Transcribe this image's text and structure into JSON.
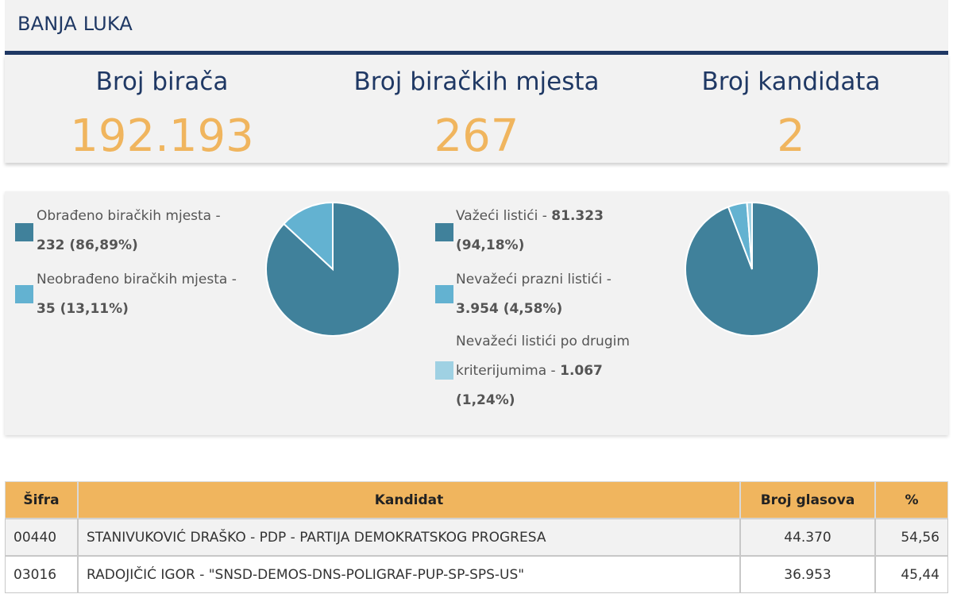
{
  "header": {
    "title": "BANJA LUKA"
  },
  "stats": [
    {
      "label": "Broj birača",
      "value": "192.193"
    },
    {
      "label": "Broj biračkih mjesta",
      "value": "267"
    },
    {
      "label": "Broj kandidata",
      "value": "2"
    }
  ],
  "colors": {
    "dark": "#40819b",
    "mid": "#63b2d1",
    "light": "#9fd1e3",
    "accent": "#f0b55e",
    "navy": "#1f3864"
  },
  "processing": {
    "legend": [
      {
        "label": "Obrađeno biračkih mjesta -",
        "value": "232 (86,89%)",
        "color": "#40819b"
      },
      {
        "label": "Neobrađeno biračkih mjesta -",
        "value": "35 (13,11%)",
        "color": "#63b2d1"
      }
    ],
    "slices": [
      232,
      35
    ]
  },
  "ballots": {
    "legend": [
      {
        "label": "Važeći listići -",
        "count": "81.323",
        "pct": "(94,18%)",
        "color": "#40819b"
      },
      {
        "label": "Nevažeći prazni listići -",
        "count": "3.954 (4,58%)",
        "color": "#63b2d1"
      },
      {
        "label_line1": "Nevažeći listići po drugim",
        "label_line2": "kriterijumima -",
        "count": "1.067",
        "pct": "(1,24%)",
        "color": "#9fd1e3"
      }
    ],
    "slices": [
      81323,
      3954,
      1067
    ]
  },
  "table": {
    "headers": [
      "Šifra",
      "Kandidat",
      "Broj glasova",
      "%"
    ],
    "rows": [
      {
        "code": "00440",
        "name": "STANIVUKOVIĆ DRAŠKO - PDP - PARTIJA DEMOKRATSKOG PROGRESA",
        "votes": "44.370",
        "pct": "54,56"
      },
      {
        "code": "03016",
        "name": "RADOJIČIĆ IGOR - \"SNSD-DEMOS-DNS-POLIGRAF-PUP-SP-SPS-US\"",
        "votes": "36.953",
        "pct": "45,44"
      }
    ]
  }
}
